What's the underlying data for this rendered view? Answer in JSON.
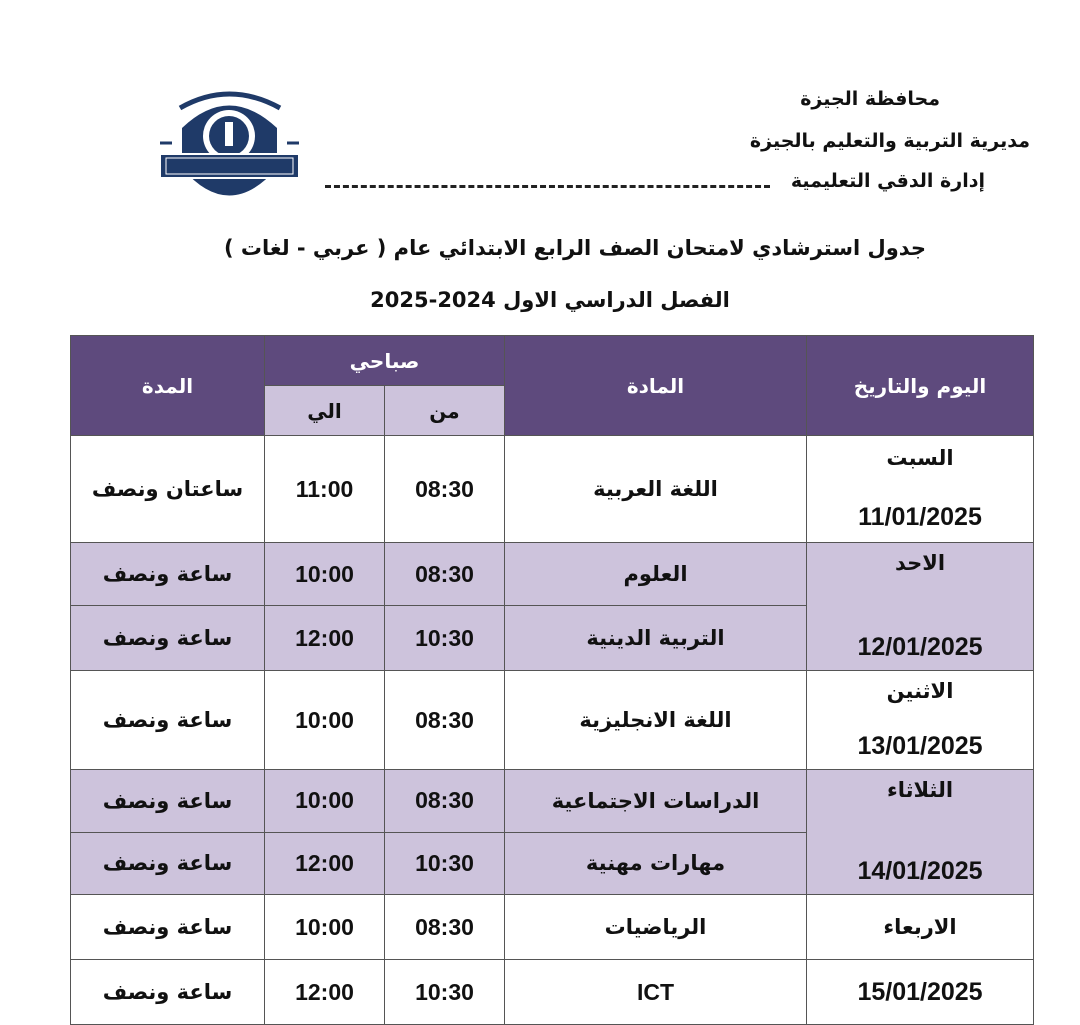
{
  "header": {
    "governorate": "محافظة الجيزة",
    "directorate": "مديرية التربية والتعليم بالجيزة",
    "administration": "إدارة الدقي التعليمية",
    "logo_text": "إدارة الدقي التعليمية - محافظة الجيزة مديرية التربية والتعليم"
  },
  "title": "جدول استرشادي لامتحان الصف الرابع الابتدائي عام ( عربي  - لغات )",
  "term": "الفصل الدراسي الاول 2024-2025",
  "colors": {
    "header_bg": "#5e4a7d",
    "band_bg": "#cdc3dc",
    "logo": "#1f3a68"
  },
  "table": {
    "headers": {
      "day_date": "اليوم والتاريخ",
      "subject": "المادة",
      "morning": "صباحي",
      "from": "من",
      "to": "الي",
      "duration": "المدة"
    },
    "rows": [
      {
        "day": "السبت",
        "date": "11/01/2025",
        "subject": "اللغة العربية",
        "from": "08:30",
        "to": "11:00",
        "duration": "ساعتان ونصف"
      },
      {
        "day": "الاحد",
        "date": "12/01/2025",
        "subject": "العلوم",
        "from": "08:30",
        "to": "10:00",
        "duration": "ساعة ونصف"
      },
      {
        "subject": "التربية الدينية",
        "from": "10:30",
        "to": "12:00",
        "duration": "ساعة ونصف"
      },
      {
        "day": "الاثنين",
        "date": "13/01/2025",
        "subject": "اللغة الانجليزية",
        "from": "08:30",
        "to": "10:00",
        "duration": "ساعة ونصف"
      },
      {
        "day": "الثلاثاء",
        "date": "14/01/2025",
        "subject": "الدراسات الاجتماعية",
        "from": "08:30",
        "to": "10:00",
        "duration": "ساعة ونصف"
      },
      {
        "subject": "مهارات مهنية",
        "from": "10:30",
        "to": "12:00",
        "duration": "ساعة ونصف"
      },
      {
        "day": "الاربعاء",
        "subject": "الرياضيات",
        "from": "08:30",
        "to": "10:00",
        "duration": "ساعة ونصف"
      },
      {
        "date": "15/01/2025",
        "subject": "ICT",
        "from": "10:30",
        "to": "12:00",
        "duration": "ساعة ونصف"
      }
    ]
  }
}
